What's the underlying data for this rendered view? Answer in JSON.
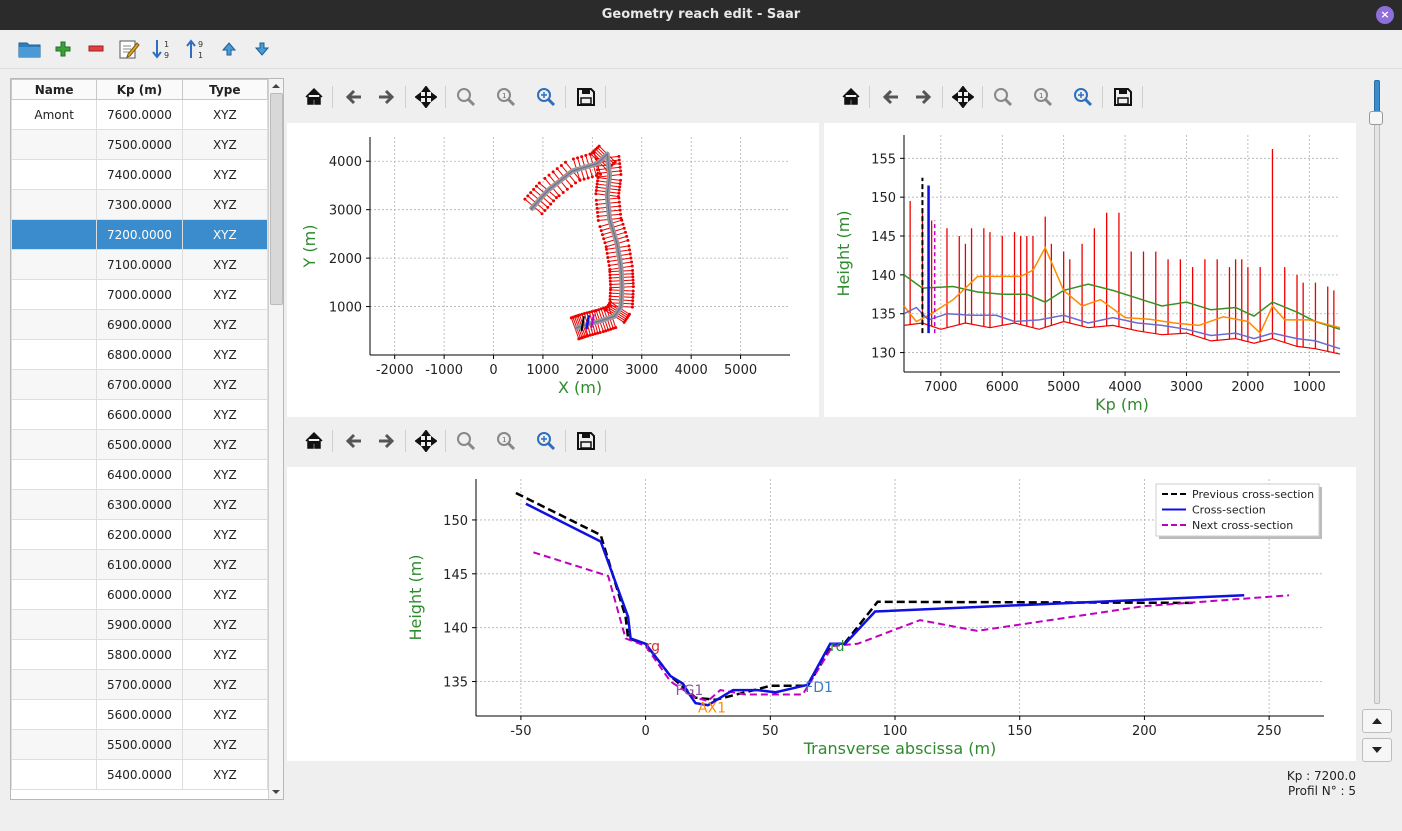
{
  "window": {
    "title": "Geometry reach edit - Saar",
    "close_label": "×"
  },
  "toolbar": {
    "icons": [
      "open-folder-icon",
      "add-icon",
      "delete-icon",
      "edit-icon",
      "sort-ascending-icon",
      "sort-descending-icon",
      "move-up-icon",
      "move-down-icon"
    ]
  },
  "table": {
    "headers": [
      "Name",
      "Kp (m)",
      "Type"
    ],
    "rows": [
      {
        "name": "Amont",
        "kp": "7600.0000",
        "type": "XYZ"
      },
      {
        "name": "",
        "kp": "7500.0000",
        "type": "XYZ"
      },
      {
        "name": "",
        "kp": "7400.0000",
        "type": "XYZ"
      },
      {
        "name": "",
        "kp": "7300.0000",
        "type": "XYZ"
      },
      {
        "name": "",
        "kp": "7200.0000",
        "type": "XYZ"
      },
      {
        "name": "",
        "kp": "7100.0000",
        "type": "XYZ"
      },
      {
        "name": "",
        "kp": "7000.0000",
        "type": "XYZ"
      },
      {
        "name": "",
        "kp": "6900.0000",
        "type": "XYZ"
      },
      {
        "name": "",
        "kp": "6800.0000",
        "type": "XYZ"
      },
      {
        "name": "",
        "kp": "6700.0000",
        "type": "XYZ"
      },
      {
        "name": "",
        "kp": "6600.0000",
        "type": "XYZ"
      },
      {
        "name": "",
        "kp": "6500.0000",
        "type": "XYZ"
      },
      {
        "name": "",
        "kp": "6400.0000",
        "type": "XYZ"
      },
      {
        "name": "",
        "kp": "6300.0000",
        "type": "XYZ"
      },
      {
        "name": "",
        "kp": "6200.0000",
        "type": "XYZ"
      },
      {
        "name": "",
        "kp": "6100.0000",
        "type": "XYZ"
      },
      {
        "name": "",
        "kp": "6000.0000",
        "type": "XYZ"
      },
      {
        "name": "",
        "kp": "5900.0000",
        "type": "XYZ"
      },
      {
        "name": "",
        "kp": "5800.0000",
        "type": "XYZ"
      },
      {
        "name": "",
        "kp": "5700.0000",
        "type": "XYZ"
      },
      {
        "name": "",
        "kp": "5600.0000",
        "type": "XYZ"
      },
      {
        "name": "",
        "kp": "5500.0000",
        "type": "XYZ"
      },
      {
        "name": "",
        "kp": "5400.0000",
        "type": "XYZ"
      }
    ],
    "selected_index": 4
  },
  "status": {
    "kp": "Kp : 7200.0",
    "profil": "Profil N° : 5"
  },
  "colors": {
    "accent": "#3a8ccc",
    "axis_label": "#2e8b2e",
    "red": "#ee0000",
    "blue": "#1010e0",
    "magenta": "#c000c0",
    "orange": "#ff8c00",
    "green": "#3a8f20"
  },
  "chart_data": [
    {
      "id": "planimetry",
      "type": "line",
      "xlabel": "X (m)",
      "ylabel": "Y (m)",
      "xlim": [
        -2500,
        6000
      ],
      "ylim": [
        0,
        4500
      ],
      "xticks": [
        -2000,
        -1000,
        0,
        1000,
        2000,
        3000,
        4000,
        5000
      ],
      "yticks": [
        1000,
        2000,
        3000,
        4000
      ],
      "grid": true,
      "series": [
        {
          "values": [
            [
              1650,
              550
            ],
            [
              1850,
              620
            ],
            [
              2150,
              700
            ],
            [
              2450,
              800
            ],
            [
              2580,
              1000
            ],
            [
              2600,
              1400
            ],
            [
              2580,
              1800
            ],
            [
              2500,
              2300
            ],
            [
              2350,
              2800
            ],
            [
              2300,
              3300
            ],
            [
              2350,
              3700
            ],
            [
              2300,
              4150
            ],
            [
              2100,
              3950
            ],
            [
              1600,
              3800
            ],
            [
              1100,
              3400
            ],
            [
              750,
              3000
            ]
          ]
        }
      ]
    },
    {
      "id": "longitudinal",
      "type": "line",
      "xlabel": "Kp (m)",
      "ylabel": "Height (m)",
      "xlim": [
        7600,
        500
      ],
      "ylim": [
        127.5,
        158
      ],
      "xticks": [
        7000,
        6000,
        5000,
        4000,
        3000,
        2000,
        1000
      ],
      "yticks": [
        130,
        135,
        140,
        145,
        150,
        155
      ],
      "grid": true,
      "series": [
        {
          "values": [
            [
              7600,
              140
            ],
            [
              7300,
              138.3
            ],
            [
              6800,
              138.5
            ],
            [
              6400,
              137.8
            ],
            [
              6000,
              137.5
            ],
            [
              5600,
              137.5
            ],
            [
              5300,
              136.5
            ],
            [
              5000,
              138
            ],
            [
              4600,
              138.8
            ],
            [
              4200,
              138
            ],
            [
              3800,
              137
            ],
            [
              3400,
              136
            ],
            [
              3000,
              136.5
            ],
            [
              2600,
              135.5
            ],
            [
              2200,
              135.8
            ],
            [
              1900,
              134.7
            ],
            [
              1600,
              136.5
            ],
            [
              1200,
              135.2
            ],
            [
              900,
              134
            ],
            [
              500,
              133
            ]
          ]
        },
        {
          "values": [
            [
              7600,
              136
            ],
            [
              7400,
              134
            ],
            [
              7200,
              134.8
            ],
            [
              6800,
              136.8
            ],
            [
              6400,
              139.8
            ],
            [
              6000,
              139.8
            ],
            [
              5700,
              139.8
            ],
            [
              5500,
              140.6
            ],
            [
              5300,
              143.5
            ],
            [
              5000,
              138
            ],
            [
              4700,
              136
            ],
            [
              4400,
              136.8
            ],
            [
              4000,
              134.5
            ],
            [
              3600,
              134.3
            ],
            [
              3200,
              133.8
            ],
            [
              2800,
              133.5
            ],
            [
              2400,
              134.6
            ],
            [
              2000,
              134
            ],
            [
              1800,
              132.5
            ],
            [
              1600,
              136
            ],
            [
              1400,
              134.2
            ],
            [
              1000,
              134.2
            ],
            [
              500,
              133.2
            ]
          ]
        },
        {
          "values": [
            [
              7600,
              135
            ],
            [
              7400,
              135.8
            ],
            [
              7200,
              134.2
            ],
            [
              6900,
              135
            ],
            [
              6500,
              134.8
            ],
            [
              6100,
              134.8
            ],
            [
              5800,
              134
            ],
            [
              5400,
              134.2
            ],
            [
              5000,
              134.8
            ],
            [
              4600,
              133.8
            ],
            [
              4200,
              134.5
            ],
            [
              3800,
              133.8
            ],
            [
              3400,
              133.5
            ],
            [
              3000,
              133
            ],
            [
              2600,
              132.2
            ],
            [
              2200,
              132.5
            ],
            [
              1900,
              131.8
            ],
            [
              1600,
              132.5
            ],
            [
              1200,
              131.8
            ],
            [
              900,
              131.5
            ],
            [
              500,
              130.5
            ]
          ]
        },
        {
          "values": [
            [
              7600,
              133.5
            ],
            [
              7300,
              133.8
            ],
            [
              7000,
              133
            ],
            [
              6600,
              133.8
            ],
            [
              6200,
              133.2
            ],
            [
              5800,
              133.8
            ],
            [
              5400,
              133
            ],
            [
              5000,
              134
            ],
            [
              4600,
              133.2
            ],
            [
              4200,
              133.5
            ],
            [
              3800,
              132.8
            ],
            [
              3400,
              132.3
            ],
            [
              3000,
              132.5
            ],
            [
              2600,
              131.5
            ],
            [
              2200,
              131.8
            ],
            [
              1900,
              131.2
            ],
            [
              1600,
              131.8
            ],
            [
              1200,
              130.8
            ],
            [
              900,
              130.5
            ],
            [
              500,
              129.8
            ]
          ]
        }
      ],
      "spikes": [
        [
          7500,
          149.5
        ],
        [
          7300,
          148
        ],
        [
          7150,
          147
        ],
        [
          6900,
          146
        ],
        [
          6700,
          145
        ],
        [
          6600,
          144
        ],
        [
          6500,
          146
        ],
        [
          6300,
          146
        ],
        [
          6200,
          145.5
        ],
        [
          6000,
          145
        ],
        [
          5800,
          145.5
        ],
        [
          5700,
          145
        ],
        [
          5600,
          145
        ],
        [
          5500,
          145
        ],
        [
          5300,
          147.5
        ],
        [
          5200,
          144
        ],
        [
          5000,
          143
        ],
        [
          4900,
          142
        ],
        [
          4700,
          144
        ],
        [
          4500,
          146
        ],
        [
          4300,
          148
        ],
        [
          4100,
          148
        ],
        [
          3900,
          143
        ],
        [
          3700,
          143
        ],
        [
          3500,
          143
        ],
        [
          3300,
          142
        ],
        [
          3100,
          142
        ],
        [
          2900,
          141
        ],
        [
          2700,
          142
        ],
        [
          2500,
          142
        ],
        [
          2300,
          141
        ],
        [
          2200,
          142
        ],
        [
          2100,
          142
        ],
        [
          2000,
          141
        ],
        [
          1800,
          141
        ],
        [
          1600,
          156.2
        ],
        [
          1400,
          141
        ],
        [
          1200,
          140
        ],
        [
          1100,
          139
        ],
        [
          900,
          139
        ],
        [
          700,
          138.5
        ],
        [
          600,
          138
        ]
      ],
      "markers": [
        {
          "x": 7300,
          "y_top": 152.5,
          "style": "dashed-black"
        },
        {
          "x": 7200,
          "y_top": 151.5,
          "style": "solid-blue"
        },
        {
          "x": 7100,
          "y_top": 147,
          "style": "dashed-magenta"
        }
      ]
    },
    {
      "id": "cross-section",
      "type": "line",
      "xlabel": "Transverse abscissa (m)",
      "ylabel": "Height (m)",
      "xlim": [
        -68,
        272
      ],
      "ylim": [
        131.8,
        153.8
      ],
      "xticks": [
        -50,
        0,
        50,
        100,
        150,
        200,
        250
      ],
      "yticks": [
        135,
        140,
        145,
        150
      ],
      "grid": true,
      "legend": "top-right",
      "series": [
        {
          "name": "Previous cross-section",
          "values": [
            [
              -52,
              152.5
            ],
            [
              -18,
              148.6
            ],
            [
              -8,
              141
            ],
            [
              -7,
              139
            ],
            [
              0,
              138.5
            ],
            [
              10,
              135.5
            ],
            [
              20,
              133.5
            ],
            [
              28,
              133.3
            ],
            [
              45,
              134.3
            ],
            [
              50,
              134.6
            ],
            [
              65,
              134.6
            ],
            [
              75,
              138.4
            ],
            [
              80,
              138.6
            ],
            [
              93,
              142.4
            ],
            [
              220,
              142.3
            ]
          ]
        },
        {
          "name": "Cross-section",
          "values": [
            [
              -48,
              151.5
            ],
            [
              -18,
              148
            ],
            [
              -7,
              141
            ],
            [
              -6,
              139
            ],
            [
              0,
              138.5
            ],
            [
              10,
              135.5
            ],
            [
              15,
              134.8
            ],
            [
              17,
              134
            ],
            [
              20,
              133
            ],
            [
              25,
              132.8
            ],
            [
              35,
              134.2
            ],
            [
              45,
              134.2
            ],
            [
              52,
              134
            ],
            [
              65,
              134.7
            ],
            [
              74,
              138.5
            ],
            [
              80,
              138.5
            ],
            [
              92,
              141.5
            ],
            [
              240,
              143
            ]
          ]
        },
        {
          "name": "Next cross-section",
          "values": [
            [
              -45,
              147
            ],
            [
              -15,
              144.8
            ],
            [
              -8,
              139
            ],
            [
              0,
              138.3
            ],
            [
              10,
              135
            ],
            [
              20,
              133.5
            ],
            [
              25,
              133.2
            ],
            [
              30,
              134.2
            ],
            [
              40,
              133.8
            ],
            [
              50,
              133.8
            ],
            [
              63,
              133.8
            ],
            [
              75,
              138.3
            ],
            [
              85,
              138.5
            ],
            [
              110,
              140.7
            ],
            [
              133,
              139.7
            ],
            [
              200,
              142
            ],
            [
              258,
              143
            ]
          ]
        }
      ],
      "annotations": [
        {
          "text": "rg",
          "x": 0,
          "y": 138.3,
          "color": "#d03030"
        },
        {
          "text": "rd",
          "x": 74,
          "y": 138.3,
          "color": "#2e8b2e"
        },
        {
          "text": "FG1",
          "x": 12,
          "y": 134.2,
          "color": "#8b5a9a"
        },
        {
          "text": "AX1",
          "x": 21,
          "y": 132.6,
          "color": "#ff8c00"
        },
        {
          "text": "FD1",
          "x": 64,
          "y": 134.5,
          "color": "#3a7fc0"
        }
      ]
    }
  ]
}
